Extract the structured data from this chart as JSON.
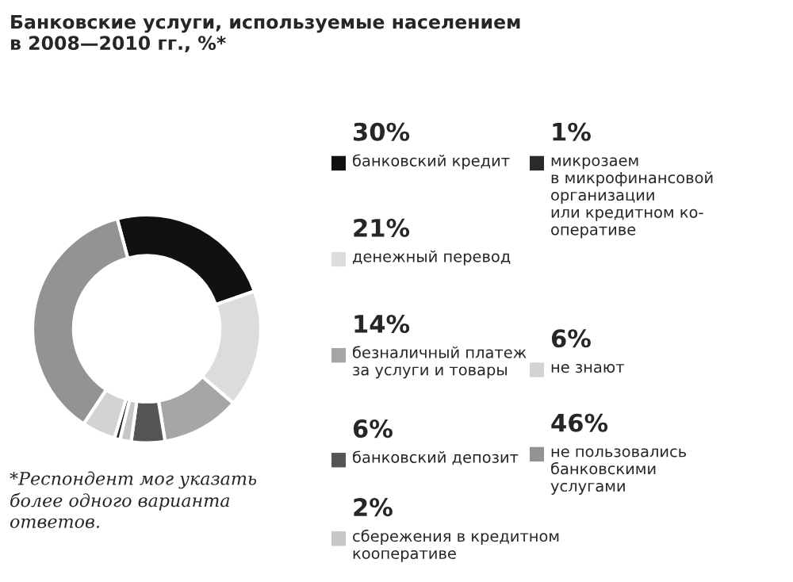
{
  "chart_data": {
    "type": "donut",
    "title": "Банковские услуги, используемые населением\nв 2008—2010 гг., %*",
    "categories": [
      "банковский кредит",
      "денежный перевод",
      "безналичный платеж\nза услуги и товары",
      "банковский депозит",
      "сбережения в кредитном\nкооперативе",
      "микрозаем\nв микрофинансовой\nорганизации\nили кредитном ко-\nоперативе",
      "не знают",
      "не пользовались\nбанковскими\nуслугами"
    ],
    "values": [
      30,
      21,
      14,
      6,
      2,
      1,
      6,
      46
    ],
    "value_labels": [
      "30%",
      "21%",
      "14%",
      "6%",
      "2%",
      "1%",
      "6%",
      "46%"
    ],
    "colors": [
      "#111111",
      "#dcdcdc",
      "#a6a6a6",
      "#555555",
      "#c6c6c6",
      "#2a2a2a",
      "#d3d3d3",
      "#939393"
    ],
    "legend": "right",
    "annotations": [
      "*Респондент мог указать\nболее одного варианта\nответов."
    ]
  }
}
